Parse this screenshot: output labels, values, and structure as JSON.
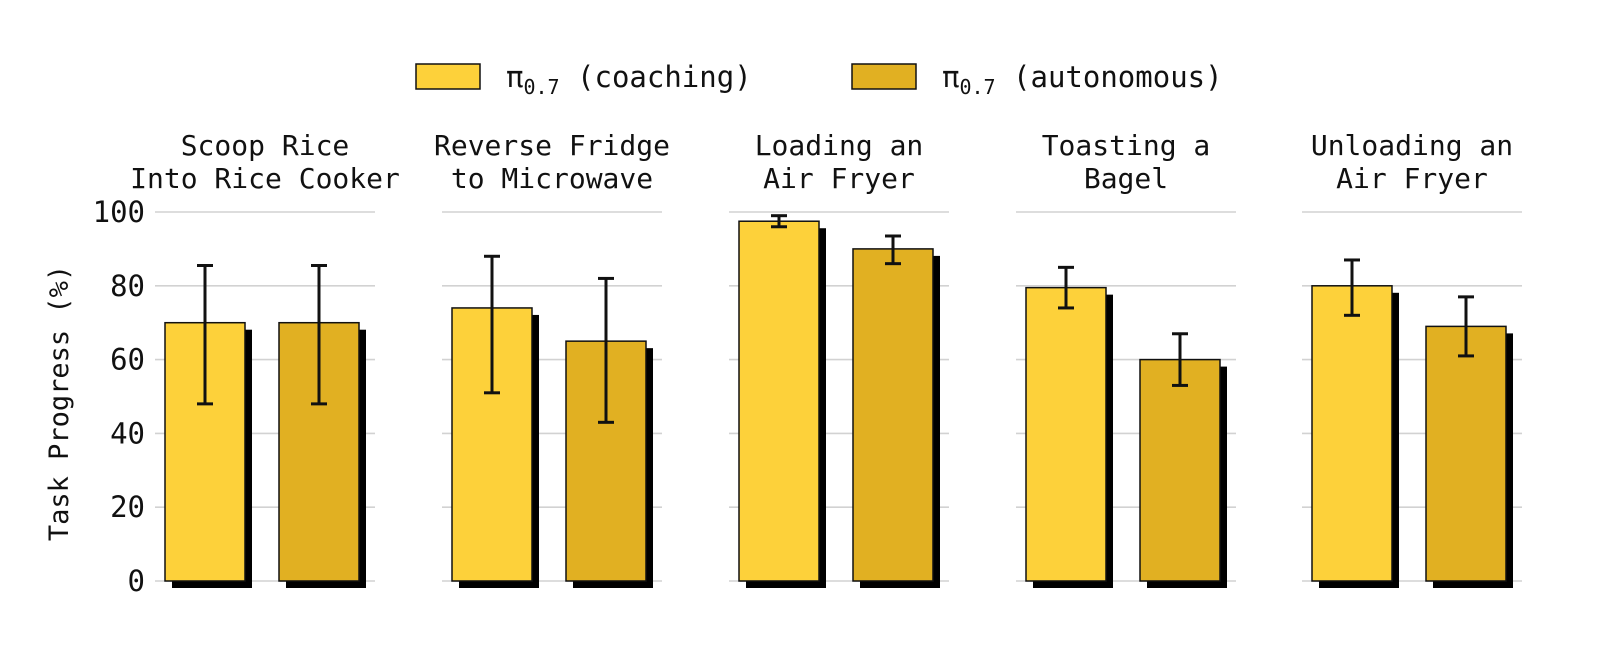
{
  "chart_data": {
    "type": "bar",
    "ylabel": "Task Progress (%)",
    "ylim": [
      0,
      100
    ],
    "yticks": [
      "0",
      "20",
      "40",
      "60",
      "80",
      "100"
    ],
    "grid": true,
    "legend_position": "top-center",
    "legend": [
      {
        "prefix": "π",
        "sub": "0.7",
        "suffix": " (coaching)",
        "color": "#FDD13A"
      },
      {
        "prefix": "π",
        "sub": "0.7",
        "suffix": " (autonomous)",
        "color": "#E1B022"
      }
    ],
    "series": [
      {
        "key": "coaching",
        "color": "#FDD13A"
      },
      {
        "key": "autonomous",
        "color": "#E1B022"
      }
    ],
    "panels": [
      {
        "title": [
          "Scoop Rice",
          "Into Rice Cooker"
        ],
        "values": [
          70,
          70
        ],
        "error_low": [
          48,
          48
        ],
        "error_high": [
          85.5,
          85.5
        ]
      },
      {
        "title": [
          "Reverse Fridge",
          "to Microwave"
        ],
        "values": [
          74,
          65
        ],
        "error_low": [
          51,
          43
        ],
        "error_high": [
          88,
          82
        ]
      },
      {
        "title": [
          "Loading an",
          "Air Fryer"
        ],
        "values": [
          97.5,
          90
        ],
        "error_low": [
          96,
          86
        ],
        "error_high": [
          99,
          93.5
        ]
      },
      {
        "title": [
          "Toasting a",
          "Bagel"
        ],
        "values": [
          79.5,
          60
        ],
        "error_low": [
          74,
          53
        ],
        "error_high": [
          85,
          67
        ]
      },
      {
        "title": [
          "Unloading an",
          "Air Fryer"
        ],
        "values": [
          80,
          69
        ],
        "error_low": [
          72,
          61
        ],
        "error_high": [
          87,
          77
        ]
      }
    ]
  }
}
